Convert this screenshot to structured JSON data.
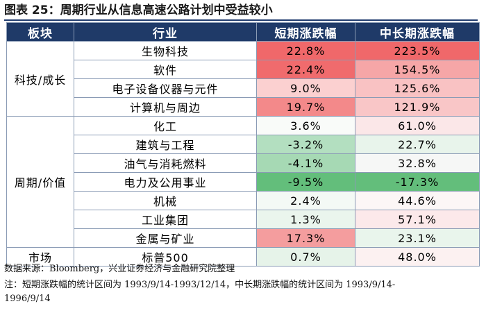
{
  "title": "图表 25：周期行业从信息高速公路计划中受益较小",
  "header": {
    "sector": "板块",
    "industry": "行业",
    "short": "短期涨跌幅",
    "long": "中长期涨跌幅"
  },
  "sectors": [
    {
      "name": "科技/成长",
      "rows": [
        {
          "industry": "生物科技",
          "short": "22.8%",
          "long": "223.5%",
          "short_color": "#f0686a",
          "long_color": "#f0686a"
        },
        {
          "industry": "软件",
          "short": "22.4%",
          "long": "154.5%",
          "short_color": "#f06b6d",
          "long_color": "#f6a6a7"
        },
        {
          "industry": "电子设备仪器与元件",
          "short": "9.0%",
          "long": "125.6%",
          "short_color": "#fbd0d0",
          "long_color": "#f9c2c3"
        },
        {
          "industry": "计算机与周边",
          "short": "19.7%",
          "long": "121.9%",
          "short_color": "#f3898a",
          "long_color": "#f9c6c7"
        }
      ]
    },
    {
      "name": "周期/价值",
      "rows": [
        {
          "industry": "化工",
          "short": "3.6%",
          "long": "61.0%",
          "short_color": "#f9fbf9",
          "long_color": "#fbe7e8"
        },
        {
          "industry": "建筑与工程",
          "short": "-3.2%",
          "long": "22.7%",
          "short_color": "#b3dfc0",
          "long_color": "#e8f4eb"
        },
        {
          "industry": "油气与消耗燃料",
          "short": "-4.1%",
          "long": "32.8%",
          "short_color": "#a6d9b4",
          "long_color": "#f6f7f6"
        },
        {
          "industry": "电力及公用事业",
          "short": "-9.5%",
          "long": "-17.3%",
          "short_color": "#63be7b",
          "long_color": "#63be7b"
        },
        {
          "industry": "机械",
          "short": "2.4%",
          "long": "44.6%",
          "short_color": "#f4f9f5",
          "long_color": "#fcf6f6"
        },
        {
          "industry": "工业集团",
          "short": "1.3%",
          "long": "57.1%",
          "short_color": "#eaf5ed",
          "long_color": "#fce9ea"
        },
        {
          "industry": "金属与矿业",
          "short": "17.3%",
          "long": "23.1%",
          "short_color": "#f49d9e",
          "long_color": "#e9f5ec"
        }
      ]
    },
    {
      "name": "市场",
      "rows": [
        {
          "industry": "标普500",
          "short": "0.7%",
          "long": "48.0%",
          "short_color": "#e6f3e9",
          "long_color": "#fcf1f1"
        }
      ]
    }
  ],
  "source": "数据来源：Bloomberg，兴业证券经济与金融研究院整理",
  "note_line1": "注：短期涨跌幅的统计区间为 1993/9/14-1993/12/14，中长期涨跌幅的统计区间为 1993/9/14-",
  "note_line2": "1996/9/14"
}
